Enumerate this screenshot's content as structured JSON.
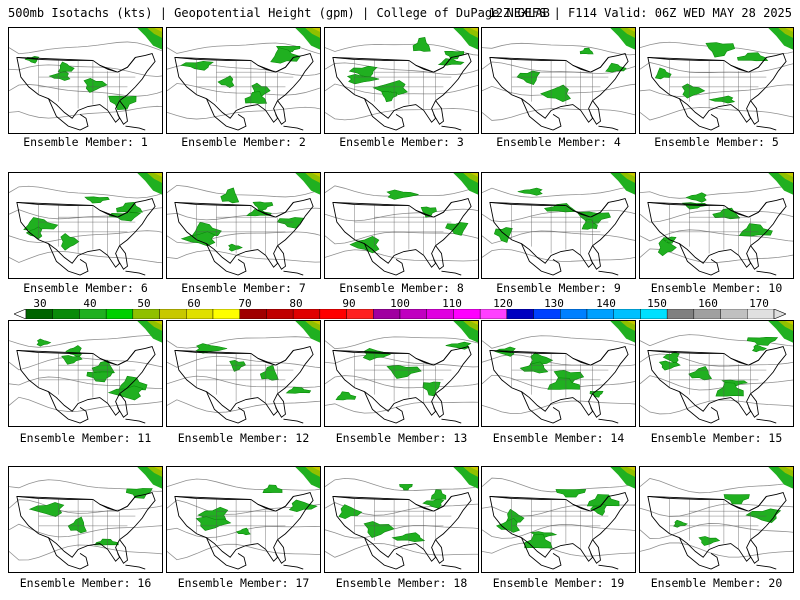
{
  "header": {
    "left": "500mb Isotachs (kts) | Geopotential Height (gpm) | College of DuPage NEXLAB",
    "right": "12Z GEFS | F114 Valid: 06Z WED MAY 28 2025"
  },
  "members": [
    "Ensemble Member: 1",
    "Ensemble Member: 2",
    "Ensemble Member: 3",
    "Ensemble Member: 4",
    "Ensemble Member: 5",
    "Ensemble Member: 6",
    "Ensemble Member: 7",
    "Ensemble Member: 8",
    "Ensemble Member: 9",
    "Ensemble Member: 10",
    "Ensemble Member: 11",
    "Ensemble Member: 12",
    "Ensemble Member: 13",
    "Ensemble Member: 14",
    "Ensemble Member: 15",
    "Ensemble Member: 16",
    "Ensemble Member: 17",
    "Ensemble Member: 18",
    "Ensemble Member: 19",
    "Ensemble Member: 20"
  ],
  "scale": {
    "labels": [
      "30",
      "40",
      "50",
      "60",
      "70",
      "80",
      "90",
      "100",
      "110",
      "120",
      "130",
      "140",
      "150",
      "160",
      "170"
    ],
    "colors": [
      "#006400",
      "#0a8a0a",
      "#20b020",
      "#00d000",
      "#90c000",
      "#c8c800",
      "#e0e000",
      "#ffff00",
      "#a00000",
      "#c00000",
      "#e00000",
      "#ff0000",
      "#ff2020",
      "#a000a0",
      "#c000c0",
      "#e000e0",
      "#ff00ff",
      "#ff40ff",
      "#0000c0",
      "#0040ff",
      "#0080ff",
      "#00a0ff",
      "#00c0ff",
      "#00e0ff",
      "#808080",
      "#a0a0a0",
      "#c0c0c0",
      "#e0e0e0"
    ]
  }
}
